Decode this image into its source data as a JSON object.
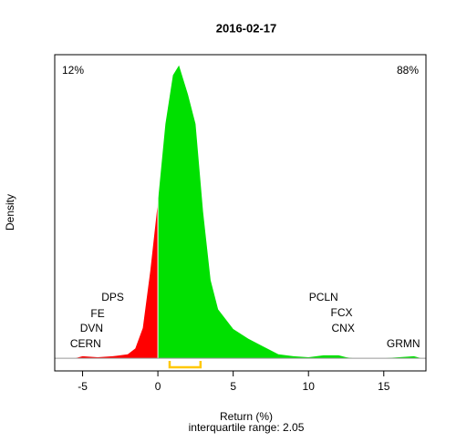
{
  "chart_data": {
    "type": "area",
    "title": "2016-02-17",
    "x_label": "Return (%)",
    "y_label": "Density",
    "subtitle": "interquartile range: 2.05",
    "x": [
      -5.5,
      -5,
      -4,
      -3,
      -2,
      -1.5,
      -1,
      -0.5,
      0,
      0.5,
      1,
      1.4,
      2,
      2.5,
      3,
      3.5,
      4,
      5,
      6,
      7,
      8,
      9,
      10,
      11,
      12,
      12.5,
      13,
      15,
      16,
      17,
      17.5
    ],
    "values": [
      0,
      0.002,
      0.001,
      0.002,
      0.004,
      0.01,
      0.031,
      0.09,
      0.16,
      0.24,
      0.29,
      0.3,
      0.27,
      0.24,
      0.15,
      0.08,
      0.05,
      0.03,
      0.02,
      0.012,
      0.004,
      0.002,
      0.001,
      0.003,
      0.003,
      0.001,
      0,
      0,
      0.001,
      0.002,
      0
    ],
    "split": 0,
    "color_below": "#ff0000",
    "color_above": "#00e000",
    "share_labels": [
      "12%",
      "88%"
    ],
    "iqr": [
      0.78,
      2.83
    ],
    "iqr_color": "#ffc800",
    "tickers": [
      {
        "label": "CERN",
        "x": -4.8
      },
      {
        "label": "DVN",
        "x": -4.4
      },
      {
        "label": "FE",
        "x": -4
      },
      {
        "label": "DPS",
        "x": -3.0
      },
      {
        "label": "PCLN",
        "x": 11
      },
      {
        "label": "FCX",
        "x": 12.2
      },
      {
        "label": "CNX",
        "x": 12.3
      },
      {
        "label": "GRMN",
        "x": 16.3
      }
    ],
    "xlim": [
      -6.85,
      17.8
    ],
    "ylim": [
      -0.013,
      0.311
    ],
    "xticks": [
      -5,
      0,
      5,
      10,
      15
    ]
  }
}
